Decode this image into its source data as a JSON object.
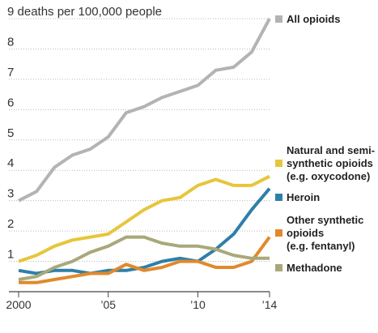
{
  "chart_data": {
    "type": "line",
    "title": "",
    "ylabel": "deaths per 100,000 people",
    "xlabel": "",
    "ylim": [
      0,
      9
    ],
    "xlim": [
      2000,
      2014
    ],
    "grid": true,
    "legend_placement": "right",
    "y_ticks": [
      {
        "value": 0,
        "label": ""
      },
      {
        "value": 1,
        "label": "1"
      },
      {
        "value": 2,
        "label": "2"
      },
      {
        "value": 3,
        "label": "3"
      },
      {
        "value": 4,
        "label": "4"
      },
      {
        "value": 5,
        "label": "5"
      },
      {
        "value": 6,
        "label": "6"
      },
      {
        "value": 7,
        "label": "7"
      },
      {
        "value": 8,
        "label": "8"
      },
      {
        "value": 9,
        "label": "9 deaths per 100,000 people"
      }
    ],
    "x_ticks": [
      {
        "value": 2000,
        "label": "2000"
      },
      {
        "value": 2005,
        "label": "’05"
      },
      {
        "value": 2010,
        "label": "’10"
      },
      {
        "value": 2014,
        "label": "’14"
      }
    ],
    "x": [
      2000,
      2001,
      2002,
      2003,
      2004,
      2005,
      2006,
      2007,
      2008,
      2009,
      2010,
      2011,
      2012,
      2013,
      2014
    ],
    "series": [
      {
        "name": "All opioids",
        "label_lines": [
          "All opioids"
        ],
        "color": "#b3b3b3",
        "values": [
          3.0,
          3.3,
          4.1,
          4.5,
          4.7,
          5.1,
          5.9,
          6.1,
          6.4,
          6.6,
          6.8,
          7.3,
          7.4,
          7.9,
          9.0
        ]
      },
      {
        "name": "Natural and semi-synthetic opioids (e.g. oxycodone)",
        "label_lines": [
          "Natural and semi-",
          "synthetic opioids",
          "(e.g. oxycodone)"
        ],
        "color": "#e6c63a",
        "values": [
          1.0,
          1.2,
          1.5,
          1.7,
          1.8,
          1.9,
          2.3,
          2.7,
          3.0,
          3.1,
          3.5,
          3.7,
          3.5,
          3.5,
          3.8
        ]
      },
      {
        "name": "Heroin",
        "label_lines": [
          "Heroin"
        ],
        "color": "#2f7fa8",
        "values": [
          0.7,
          0.6,
          0.7,
          0.7,
          0.6,
          0.7,
          0.7,
          0.8,
          1.0,
          1.1,
          1.0,
          1.4,
          1.9,
          2.7,
          3.4
        ]
      },
      {
        "name": "Other synthetic opioids (e.g. fentanyl)",
        "label_lines": [
          "Other synthetic",
          "opioids",
          "(e.g. fentanyl)"
        ],
        "color": "#e08a2c",
        "values": [
          0.3,
          0.3,
          0.4,
          0.5,
          0.6,
          0.6,
          0.9,
          0.7,
          0.8,
          1.0,
          1.0,
          0.8,
          0.8,
          1.0,
          1.8
        ]
      },
      {
        "name": "Methadone",
        "label_lines": [
          "Methadone"
        ],
        "color": "#a8a87a",
        "values": [
          0.4,
          0.5,
          0.8,
          1.0,
          1.3,
          1.5,
          1.8,
          1.8,
          1.6,
          1.5,
          1.5,
          1.4,
          1.2,
          1.1,
          1.1
        ]
      }
    ]
  }
}
